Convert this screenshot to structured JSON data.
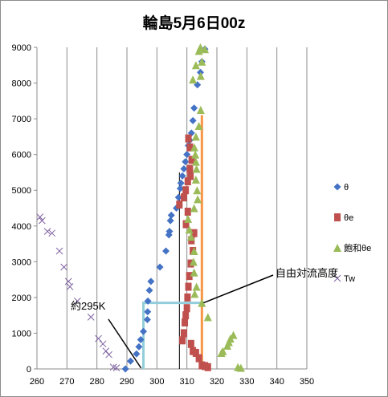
{
  "chart_data": {
    "type": "scatter",
    "title": "輪島5月6日00z",
    "xlim": [
      260,
      350
    ],
    "ylim": [
      0,
      9000
    ],
    "xticks": [
      "260",
      "270",
      "280",
      "290",
      "300",
      "310",
      "320",
      "330",
      "340",
      "350"
    ],
    "yticks": [
      "0",
      "1000",
      "2000",
      "3000",
      "4000",
      "5000",
      "6000",
      "7000",
      "8000",
      "9000"
    ],
    "grid": "vertical",
    "legend_position": "right",
    "series": [
      {
        "name": "θ",
        "marker": "diamond",
        "color": "#4472c4",
        "points": [
          [
            289.5,
            0
          ],
          [
            291.2,
            220
          ],
          [
            293.2,
            420
          ],
          [
            294,
            620
          ],
          [
            294.6,
            820
          ],
          [
            295.5,
            1050
          ],
          [
            296.8,
            1380
          ],
          [
            296.9,
            1600
          ],
          [
            297,
            1900
          ],
          [
            297.5,
            2200
          ],
          [
            298,
            2450
          ],
          [
            301,
            2850
          ],
          [
            303,
            3300
          ],
          [
            304,
            3750
          ],
          [
            304.2,
            3850
          ],
          [
            304.5,
            4150
          ],
          [
            304.8,
            4300
          ],
          [
            306.5,
            4500
          ],
          [
            307.2,
            4800
          ],
          [
            307.8,
            5050
          ],
          [
            308,
            5200
          ],
          [
            308.5,
            5400
          ],
          [
            309,
            5600
          ],
          [
            309.5,
            5800
          ],
          [
            310,
            6000
          ],
          [
            310.5,
            6250
          ],
          [
            311,
            6400
          ],
          [
            311.5,
            6600
          ],
          [
            312,
            6950
          ],
          [
            312.4,
            7300
          ],
          [
            313.5,
            7950
          ],
          [
            314.5,
            8300
          ],
          [
            315,
            8600
          ],
          [
            316,
            8950
          ]
        ]
      },
      {
        "name": "θe",
        "marker": "square",
        "color": "#c0504d",
        "points": [
          [
            308.5,
            800
          ],
          [
            309,
            1000
          ],
          [
            309.3,
            1300
          ],
          [
            309.6,
            1500
          ],
          [
            310,
            1700
          ],
          [
            310.2,
            2000
          ],
          [
            310.5,
            2300
          ],
          [
            310.8,
            2600
          ],
          [
            311.3,
            2950
          ],
          [
            312,
            3300
          ],
          [
            311.5,
            3600
          ],
          [
            312.4,
            3800
          ],
          [
            309.7,
            4050
          ],
          [
            310.3,
            4400
          ],
          [
            307.5,
            4600
          ],
          [
            309,
            4800
          ],
          [
            309.6,
            5000
          ],
          [
            310.3,
            5250
          ],
          [
            311.2,
            5400
          ],
          [
            311,
            5600
          ],
          [
            311.6,
            5850
          ],
          [
            311,
            6200
          ],
          [
            310.5,
            6450
          ],
          [
            311.4,
            700
          ],
          [
            312,
            500
          ],
          [
            313,
            450
          ],
          [
            314,
            300
          ],
          [
            315,
            100
          ],
          [
            316,
            80
          ],
          [
            317,
            50
          ]
        ]
      },
      {
        "name": "飽和θe",
        "marker": "triangle",
        "color": "#9bbb59",
        "points": [
          [
            312,
            8100
          ],
          [
            313,
            8500
          ],
          [
            314,
            8900
          ],
          [
            314.6,
            8200
          ],
          [
            315,
            8600
          ],
          [
            314.5,
            9000
          ],
          [
            316,
            8950
          ],
          [
            314.6,
            7250
          ],
          [
            314,
            6800
          ],
          [
            313,
            6500
          ],
          [
            312.5,
            6200
          ],
          [
            312.8,
            6000
          ],
          [
            313,
            5800
          ],
          [
            313.2,
            5600
          ],
          [
            313,
            5300
          ],
          [
            313.4,
            5000
          ],
          [
            313.6,
            4750
          ],
          [
            312.4,
            4500
          ],
          [
            310.4,
            4200
          ],
          [
            310.8,
            3900
          ],
          [
            311.4,
            3700
          ],
          [
            312.4,
            3300
          ],
          [
            312.2,
            3000
          ],
          [
            312.4,
            2700
          ],
          [
            313.2,
            2300
          ],
          [
            312.6,
            2100
          ],
          [
            315,
            1850
          ],
          [
            317,
            1450
          ],
          [
            321.5,
            450
          ],
          [
            322,
            500
          ],
          [
            323.5,
            650
          ],
          [
            324,
            750
          ],
          [
            324.5,
            850
          ],
          [
            325.5,
            950
          ],
          [
            327,
            50
          ],
          [
            328,
            30
          ]
        ]
      },
      {
        "name": "Tw",
        "marker": "x",
        "color": "#8064a2",
        "points": [
          [
            261,
            4250
          ],
          [
            261.7,
            4150
          ],
          [
            263.5,
            3850
          ],
          [
            265,
            3800
          ],
          [
            267.5,
            3300
          ],
          [
            269,
            2850
          ],
          [
            270.5,
            2450
          ],
          [
            271,
            2300
          ],
          [
            273.5,
            1900
          ],
          [
            278,
            1450
          ],
          [
            280.5,
            850
          ],
          [
            282,
            700
          ],
          [
            283,
            500
          ],
          [
            284,
            400
          ],
          [
            285.5,
            50
          ],
          [
            286.5,
            30
          ]
        ]
      }
    ],
    "annotations": [
      {
        "text": "約295K",
        "x": 295
      },
      {
        "text": "自由対流高度",
        "y": 1850
      }
    ],
    "overlay_lines": {
      "orange_vertical_x": 315,
      "orange_vertical_y": [
        0,
        7100
      ],
      "black_vertical_x": 307.5,
      "black_vertical_y": [
        0,
        5500
      ],
      "cyan_vertical_x": 295.5,
      "cyan_top_y": 1850,
      "cyan_end_x": 315
    }
  }
}
